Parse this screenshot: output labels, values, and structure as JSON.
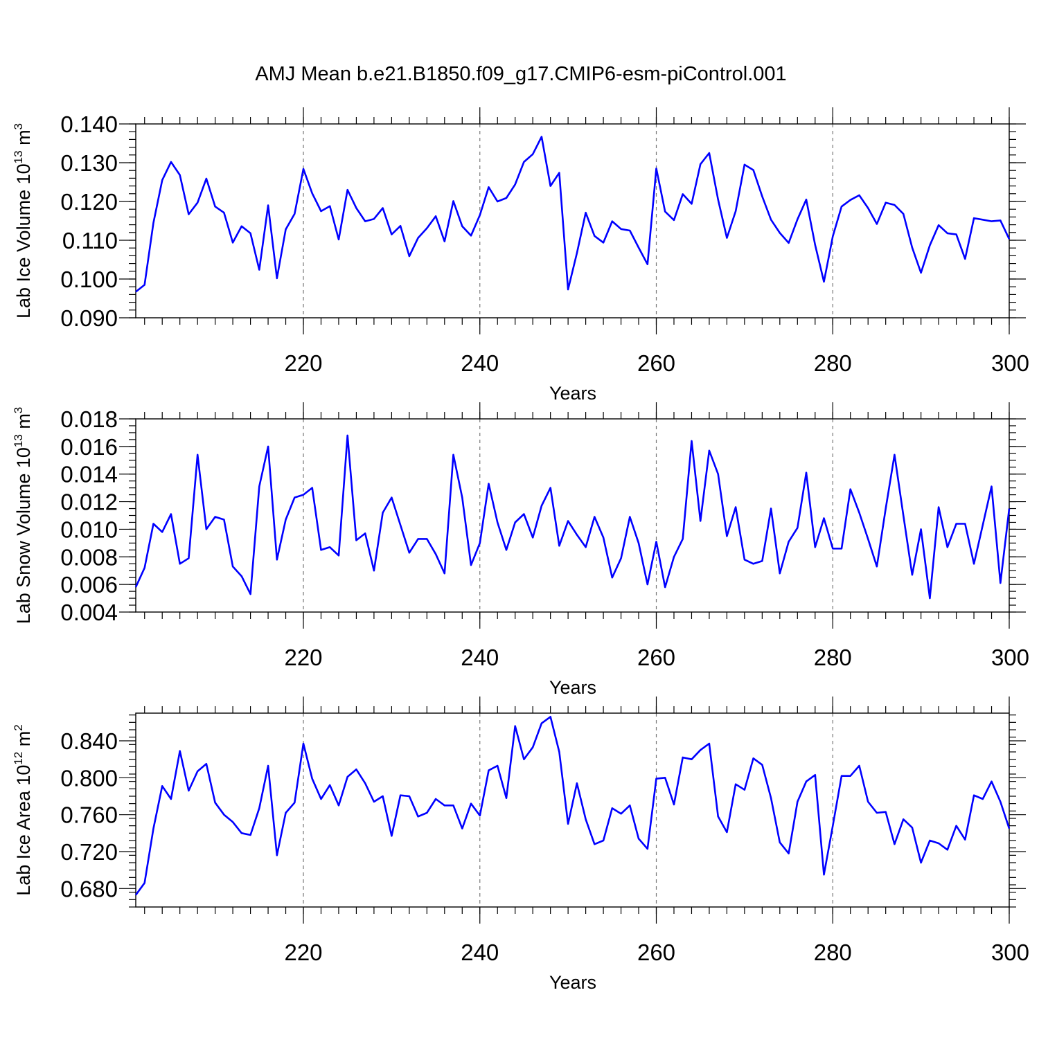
{
  "title": "AMJ Mean b.e21.B1850.f09_g17.CMIP6-esm-piControl.001",
  "colors": {
    "line": "#0000ff",
    "grid": "#777777"
  },
  "chart_data": [
    {
      "type": "line",
      "title": "AMJ Mean b.e21.B1850.f09_g17.CMIP6-esm-piControl.001",
      "xlabel": "Years",
      "ylabel": {
        "text": "Lab Ice Volume 10",
        "exp": "13",
        "unit": " m",
        "unit_exp": "3"
      },
      "xlim": [
        201,
        300
      ],
      "ylim": [
        0.09,
        0.14
      ],
      "yticks": [
        "0.090",
        "0.100",
        "0.110",
        "0.120",
        "0.130",
        "0.140"
      ],
      "ytick_values": [
        0.09,
        0.1,
        0.11,
        0.12,
        0.13,
        0.14
      ],
      "yminor_step": 0.002,
      "xticks": [
        "220",
        "240",
        "260",
        "280",
        "300"
      ],
      "xtick_values": [
        220,
        240,
        260,
        280,
        300
      ],
      "grid": "vertical dashed at major x ticks",
      "x_start": 201,
      "values": [
        0.0967,
        0.0985,
        0.1145,
        0.1255,
        0.1302,
        0.1268,
        0.1167,
        0.1197,
        0.1259,
        0.1187,
        0.1171,
        0.1094,
        0.1136,
        0.1118,
        0.1024,
        0.119,
        0.1002,
        0.1128,
        0.1168,
        0.1284,
        0.1221,
        0.1175,
        0.1188,
        0.1102,
        0.123,
        0.1183,
        0.1149,
        0.1155,
        0.1183,
        0.1115,
        0.1137,
        0.1059,
        0.1106,
        0.1131,
        0.1162,
        0.1097,
        0.1201,
        0.1136,
        0.1112,
        0.1165,
        0.1237,
        0.12,
        0.1209,
        0.1244,
        0.1302,
        0.1322,
        0.1367,
        0.124,
        0.1274,
        0.0973,
        0.1067,
        0.1171,
        0.1111,
        0.1094,
        0.1149,
        0.1129,
        0.1125,
        0.1081,
        0.1038,
        0.1285,
        0.1174,
        0.1152,
        0.1219,
        0.1194,
        0.1296,
        0.1325,
        0.1205,
        0.1106,
        0.1175,
        0.1295,
        0.1281,
        0.1213,
        0.1153,
        0.1119,
        0.1093,
        0.1154,
        0.1205,
        0.1088,
        0.0993,
        0.111,
        0.1187,
        0.1204,
        0.1216,
        0.1183,
        0.1142,
        0.1197,
        0.1191,
        0.1168,
        0.1081,
        0.1016,
        0.1087,
        0.1139,
        0.1118,
        0.1115,
        0.1052,
        0.1157,
        0.1153,
        0.1149,
        0.1151,
        0.1103
      ]
    },
    {
      "type": "line",
      "xlabel": "Years",
      "ylabel": {
        "text": "Lab Snow Volume 10",
        "exp": "13",
        "unit": " m",
        "unit_exp": "3"
      },
      "xlim": [
        201,
        300
      ],
      "ylim": [
        0.004,
        0.018
      ],
      "yticks": [
        "0.004",
        "0.006",
        "0.008",
        "0.010",
        "0.012",
        "0.014",
        "0.016",
        "0.018"
      ],
      "ytick_values": [
        0.004,
        0.006,
        0.008,
        0.01,
        0.012,
        0.014,
        0.016,
        0.018
      ],
      "yminor_step": 0.0005,
      "xticks": [
        "220",
        "240",
        "260",
        "280",
        "300"
      ],
      "xtick_values": [
        220,
        240,
        260,
        280,
        300
      ],
      "grid": "vertical dashed at major x ticks",
      "x_start": 201,
      "values": [
        0.0058,
        0.0072,
        0.0104,
        0.0098,
        0.0111,
        0.0075,
        0.0079,
        0.0154,
        0.01,
        0.0109,
        0.0107,
        0.0073,
        0.0066,
        0.0053,
        0.0131,
        0.016,
        0.0078,
        0.0107,
        0.0123,
        0.0125,
        0.013,
        0.0085,
        0.0087,
        0.0081,
        0.0168,
        0.0092,
        0.0097,
        0.007,
        0.0112,
        0.0123,
        0.0103,
        0.0083,
        0.0093,
        0.0093,
        0.0082,
        0.0068,
        0.0154,
        0.0123,
        0.0074,
        0.009,
        0.0133,
        0.0105,
        0.0085,
        0.0105,
        0.0111,
        0.0094,
        0.0117,
        0.013,
        0.0088,
        0.0106,
        0.0096,
        0.0087,
        0.0109,
        0.0094,
        0.0065,
        0.0079,
        0.0109,
        0.009,
        0.006,
        0.0091,
        0.0058,
        0.008,
        0.0093,
        0.0164,
        0.0106,
        0.0157,
        0.014,
        0.0095,
        0.0116,
        0.0078,
        0.0075,
        0.0077,
        0.0115,
        0.0068,
        0.0091,
        0.0101,
        0.0141,
        0.0087,
        0.0108,
        0.0086,
        0.0086,
        0.0129,
        0.0112,
        0.0093,
        0.0073,
        0.0115,
        0.0154,
        0.011,
        0.0067,
        0.01,
        0.005,
        0.0116,
        0.0087,
        0.0104,
        0.0104,
        0.0075,
        0.0103,
        0.0131,
        0.0061,
        0.0115
      ]
    },
    {
      "type": "line",
      "xlabel": "Years",
      "ylabel": {
        "text": "Lab Ice Area 10",
        "exp": "12",
        "unit": " m",
        "unit_exp": "2"
      },
      "xlim": [
        201,
        300
      ],
      "ylim": [
        0.66,
        0.87
      ],
      "yticks": [
        "0.680",
        "0.720",
        "0.760",
        "0.800",
        "0.840"
      ],
      "ytick_values": [
        0.68,
        0.72,
        0.76,
        0.8,
        0.84
      ],
      "yminor_step": 0.008,
      "xticks": [
        "220",
        "240",
        "260",
        "280",
        "300"
      ],
      "xtick_values": [
        220,
        240,
        260,
        280,
        300
      ],
      "grid": "vertical dashed at major x ticks",
      "x_start": 201,
      "values": [
        0.673,
        0.686,
        0.745,
        0.791,
        0.777,
        0.829,
        0.786,
        0.807,
        0.815,
        0.773,
        0.76,
        0.752,
        0.74,
        0.738,
        0.767,
        0.813,
        0.716,
        0.762,
        0.773,
        0.837,
        0.799,
        0.777,
        0.792,
        0.77,
        0.801,
        0.809,
        0.794,
        0.774,
        0.78,
        0.737,
        0.781,
        0.78,
        0.758,
        0.762,
        0.777,
        0.77,
        0.77,
        0.745,
        0.772,
        0.759,
        0.808,
        0.813,
        0.778,
        0.856,
        0.82,
        0.833,
        0.859,
        0.866,
        0.828,
        0.75,
        0.794,
        0.755,
        0.728,
        0.732,
        0.767,
        0.761,
        0.77,
        0.734,
        0.723,
        0.799,
        0.8,
        0.771,
        0.822,
        0.82,
        0.83,
        0.837,
        0.758,
        0.741,
        0.793,
        0.787,
        0.821,
        0.814,
        0.778,
        0.73,
        0.718,
        0.774,
        0.796,
        0.803,
        0.695,
        0.748,
        0.802,
        0.802,
        0.813,
        0.774,
        0.762,
        0.763,
        0.728,
        0.755,
        0.746,
        0.708,
        0.732,
        0.729,
        0.722,
        0.748,
        0.733,
        0.781,
        0.777,
        0.796,
        0.774,
        0.745
      ]
    }
  ]
}
